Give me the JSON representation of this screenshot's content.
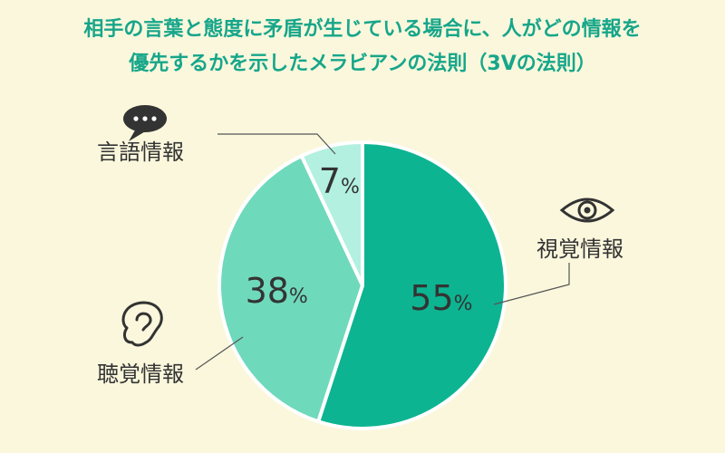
{
  "title_line1": "相手の言葉と態度に矛盾が生じている場合に、人がどの情報を",
  "title_line2": "優先するかを示したメラビアンの法則（3Vの法則）",
  "colors": {
    "background": "#faf7dc",
    "title": "#16a68a",
    "visual": "#0db491",
    "auditory": "#6fd9bb",
    "verbal": "#b3f0e0",
    "text": "#333333",
    "line": "#555555"
  },
  "chart_data": {
    "type": "pie",
    "slices": [
      {
        "label": "視覚情報",
        "value": 55,
        "color": "#0db491",
        "icon": "eye-icon"
      },
      {
        "label": "聴覚情報",
        "value": 38,
        "color": "#6fd9bb",
        "icon": "ear-icon"
      },
      {
        "label": "言語情報",
        "value": 7,
        "color": "#b3f0e0",
        "icon": "speech-bubble-icon"
      }
    ],
    "unit": "%",
    "start": "12 o'clock",
    "direction": "clockwise"
  }
}
